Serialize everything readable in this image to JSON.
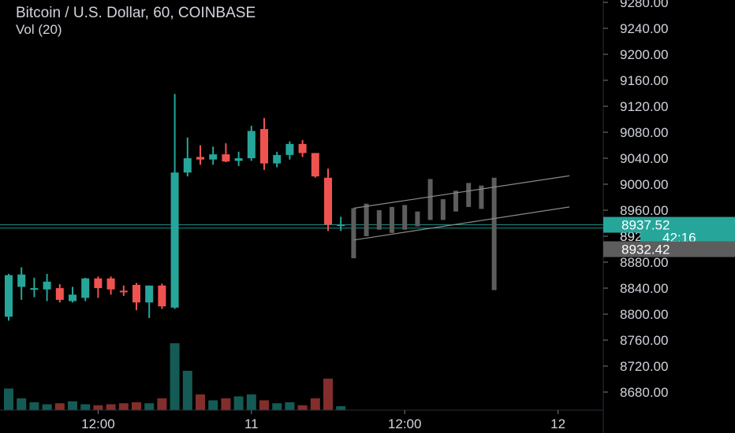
{
  "header": {
    "title": "Bitcoin / U.S. Dollar, 60, COINBASE",
    "indicator": "Vol (20)"
  },
  "colors": {
    "up": "#26a69a",
    "down": "#ef5350",
    "projection": "#5d5d5d",
    "axis_text": "#d1d4dc",
    "channel": "#8a8a8a"
  },
  "chart_data": {
    "type": "candlestick",
    "symbol": "Bitcoin / U.S. Dollar",
    "interval": "60",
    "exchange": "COINBASE",
    "ylim": [
      8660,
      9290
    ],
    "y_ticks": [
      9280,
      9240,
      9200,
      9160,
      9120,
      9080,
      9040,
      9000,
      8960,
      8920,
      8880,
      8840,
      8800,
      8760,
      8720,
      8680
    ],
    "x_ticks": [
      {
        "label": "12:00",
        "index": 7
      },
      {
        "label": "11",
        "index": 19
      },
      {
        "label": "12:00",
        "index": 31
      },
      {
        "label": "12",
        "index": 43
      }
    ],
    "candles": [
      {
        "o": 8796,
        "h": 8862,
        "l": 8790,
        "c": 8860
      },
      {
        "o": 8842,
        "h": 8872,
        "l": 8822,
        "c": 8861
      },
      {
        "o": 8838,
        "h": 8856,
        "l": 8826,
        "c": 8840
      },
      {
        "o": 8838,
        "h": 8862,
        "l": 8820,
        "c": 8850
      },
      {
        "o": 8840,
        "h": 8846,
        "l": 8818,
        "c": 8822
      },
      {
        "o": 8820,
        "h": 8842,
        "l": 8818,
        "c": 8830
      },
      {
        "o": 8825,
        "h": 8856,
        "l": 8820,
        "c": 8855
      },
      {
        "o": 8855,
        "h": 8858,
        "l": 8825,
        "c": 8840
      },
      {
        "o": 8855,
        "h": 8858,
        "l": 8830,
        "c": 8838
      },
      {
        "o": 8836,
        "h": 8844,
        "l": 8828,
        "c": 8834
      },
      {
        "o": 8845,
        "h": 8848,
        "l": 8806,
        "c": 8818
      },
      {
        "o": 8818,
        "h": 8844,
        "l": 8794,
        "c": 8844
      },
      {
        "o": 8844,
        "h": 8847,
        "l": 8808,
        "c": 8812
      },
      {
        "o": 8810,
        "h": 9139,
        "l": 8808,
        "c": 9018
      },
      {
        "o": 9018,
        "h": 9072,
        "l": 9012,
        "c": 9040
      },
      {
        "o": 9042,
        "h": 9060,
        "l": 9030,
        "c": 9038
      },
      {
        "o": 9038,
        "h": 9058,
        "l": 9030,
        "c": 9046
      },
      {
        "o": 9046,
        "h": 9063,
        "l": 9034,
        "c": 9035
      },
      {
        "o": 9036,
        "h": 9050,
        "l": 9028,
        "c": 9040
      },
      {
        "o": 9040,
        "h": 9090,
        "l": 9036,
        "c": 9082
      },
      {
        "o": 9085,
        "h": 9102,
        "l": 9022,
        "c": 9032
      },
      {
        "o": 9032,
        "h": 9050,
        "l": 9026,
        "c": 9045
      },
      {
        "o": 9045,
        "h": 9066,
        "l": 9038,
        "c": 9062
      },
      {
        "o": 9062,
        "h": 9068,
        "l": 9042,
        "c": 9048
      },
      {
        "o": 9048,
        "h": 9048,
        "l": 9010,
        "c": 9012
      },
      {
        "o": 9010,
        "h": 9024,
        "l": 8928,
        "c": 8938
      },
      {
        "o": 8938,
        "h": 8950,
        "l": 8928,
        "c": 8938
      }
    ],
    "volumes": [
      22,
      12,
      8,
      6,
      7,
      9,
      6,
      5,
      6,
      7,
      8,
      7,
      12,
      68,
      40,
      16,
      10,
      12,
      14,
      16,
      10,
      7,
      8,
      5,
      12,
      32,
      4
    ],
    "projection_bars": [
      {
        "x": 27.0,
        "top": 8963,
        "bot": 8886
      },
      {
        "x": 28.0,
        "top": 8970,
        "bot": 8920
      },
      {
        "x": 29.0,
        "top": 8960,
        "bot": 8930
      },
      {
        "x": 30.0,
        "top": 8965,
        "bot": 8925
      },
      {
        "x": 31.0,
        "top": 8968,
        "bot": 8930
      },
      {
        "x": 32.0,
        "top": 8958,
        "bot": 8935
      },
      {
        "x": 33.0,
        "top": 9008,
        "bot": 8945
      },
      {
        "x": 34.0,
        "top": 8977,
        "bot": 8945
      },
      {
        "x": 35.0,
        "top": 8990,
        "bot": 8958
      },
      {
        "x": 36.0,
        "top": 9002,
        "bot": 8965
      },
      {
        "x": 37.0,
        "top": 8998,
        "bot": 8962
      },
      {
        "x": 38.0,
        "top": 9010,
        "bot": 8837
      }
    ],
    "channel_lines": [
      {
        "x1": 27.0,
        "y1": 8963,
        "x2": 43.9,
        "y2": 9013
      },
      {
        "x1": 27.0,
        "y1": 8914,
        "x2": 43.9,
        "y2": 8965
      }
    ],
    "reference_lines": [
      8937.52,
      8932.42
    ],
    "price_labels": [
      {
        "value": "8937.52",
        "price": 8937.52,
        "bg": "#26a69a"
      },
      {
        "value": "42:16",
        "price": 8918,
        "bg": "#26a69a"
      },
      {
        "value": "8932.42",
        "price": 8900,
        "bg": "#5d5d5d"
      }
    ],
    "price_label_partial": "89"
  }
}
